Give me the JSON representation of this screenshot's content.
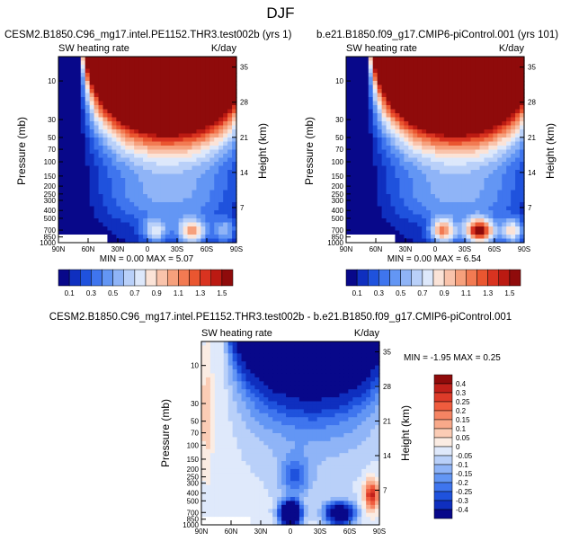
{
  "figure": {
    "title": "DJF"
  },
  "chart_data": [
    {
      "type": "heatmap",
      "title": "CESM2.B1850.C96_mg17.intel.PE1152.THR3.test002b (yrs 1)",
      "left_string": "SW heating rate",
      "right_string": "K/day",
      "ylabel": "Pressure (mb)",
      "ylabel_right": "Height (km)",
      "xticks": [
        "90N",
        "60N",
        "30N",
        "0",
        "30S",
        "60S",
        "90S"
      ],
      "yticks": [
        "10",
        "30",
        "50",
        "70",
        "100",
        "150",
        "200",
        "250",
        "300",
        "400",
        "500",
        "700",
        "850",
        "1000"
      ],
      "yticks_right": [
        "35",
        "28",
        "21",
        "14",
        "7"
      ],
      "min_text": "MIN =   0.00   MAX =   5.07",
      "min": 0.0,
      "max": 5.07,
      "colorbar_labels": [
        "0.1",
        "0.3",
        "0.5",
        "0.7",
        "0.9",
        "1.1",
        "1.3",
        "1.5"
      ],
      "colorbar_colors": [
        "#08088a",
        "#0f2fbf",
        "#1f52dd",
        "#3f75ee",
        "#6396f4",
        "#8fb4f7",
        "#b9d0f9",
        "#dde8fb",
        "#fbe3d7",
        "#f9c3ab",
        "#f6a07c",
        "#f27a52",
        "#ea5630",
        "#d93320",
        "#bb1a12",
        "#8f0b0b"
      ],
      "surface_anomaly": 1.0
    },
    {
      "type": "heatmap",
      "title": "b.e21.B1850.f09_g17.CMIP6-piControl.001 (yrs 101)",
      "left_string": "SW heating rate",
      "right_string": "K/day",
      "ylabel": "Pressure (mb)",
      "ylabel_right": "Height (km)",
      "xticks": [
        "90N",
        "60N",
        "30N",
        "0",
        "30S",
        "60S",
        "90S"
      ],
      "yticks": [
        "10",
        "30",
        "50",
        "70",
        "100",
        "150",
        "200",
        "250",
        "300",
        "400",
        "500",
        "700",
        "850",
        "1000"
      ],
      "yticks_right": [
        "35",
        "28",
        "21",
        "14",
        "7"
      ],
      "min_text": "MIN =   0.00   MAX =   6.54",
      "min": 0.0,
      "max": 6.54,
      "colorbar_labels": [
        "0.1",
        "0.3",
        "0.5",
        "0.7",
        "0.9",
        "1.1",
        "1.3",
        "1.5"
      ],
      "colorbar_colors": [
        "#08088a",
        "#0f2fbf",
        "#1f52dd",
        "#3f75ee",
        "#6396f4",
        "#8fb4f7",
        "#b9d0f9",
        "#dde8fb",
        "#fbe3d7",
        "#f9c3ab",
        "#f6a07c",
        "#f27a52",
        "#ea5630",
        "#d93320",
        "#bb1a12",
        "#8f0b0b"
      ],
      "surface_anomaly": 1.6
    },
    {
      "type": "heatmap",
      "title": "CESM2.B1850.C96_mg17.intel.PE1152.THR3.test002b - b.e21.B1850.f09_g17.CMIP6-piControl.001",
      "left_string": "SW heating rate",
      "right_string": "K/day",
      "ylabel": "Pressure (mb)",
      "ylabel_right": "Height (km)",
      "xticks": [
        "90N",
        "60N",
        "30N",
        "0",
        "30S",
        "60S",
        "90S"
      ],
      "yticks": [
        "10",
        "30",
        "50",
        "70",
        "100",
        "150",
        "200",
        "250",
        "300",
        "400",
        "500",
        "700",
        "850",
        "1000"
      ],
      "yticks_right": [
        "35",
        "28",
        "21",
        "14",
        "7"
      ],
      "min_text": "MIN = -1.95  MAX =   0.25",
      "min": -1.95,
      "max": 0.25,
      "colorbar_labels": [
        "0.4",
        "0.3",
        "0.25",
        "0.2",
        "0.15",
        "0.1",
        "0.05",
        "0",
        "-0.05",
        "-0.1",
        "-0.15",
        "-0.2",
        "-0.25",
        "-0.3",
        "-0.4"
      ],
      "colorbar_colors": [
        "#8f0b0b",
        "#c0201a",
        "#dd3b29",
        "#ef5c3e",
        "#f58463",
        "#f8a98a",
        "#fbccb5",
        "#fbece3",
        "#dfe9fb",
        "#b9d0f9",
        "#8fb4f7",
        "#6396f4",
        "#3f75ee",
        "#1f52dd",
        "#0f2fbf",
        "#08088a"
      ]
    }
  ]
}
